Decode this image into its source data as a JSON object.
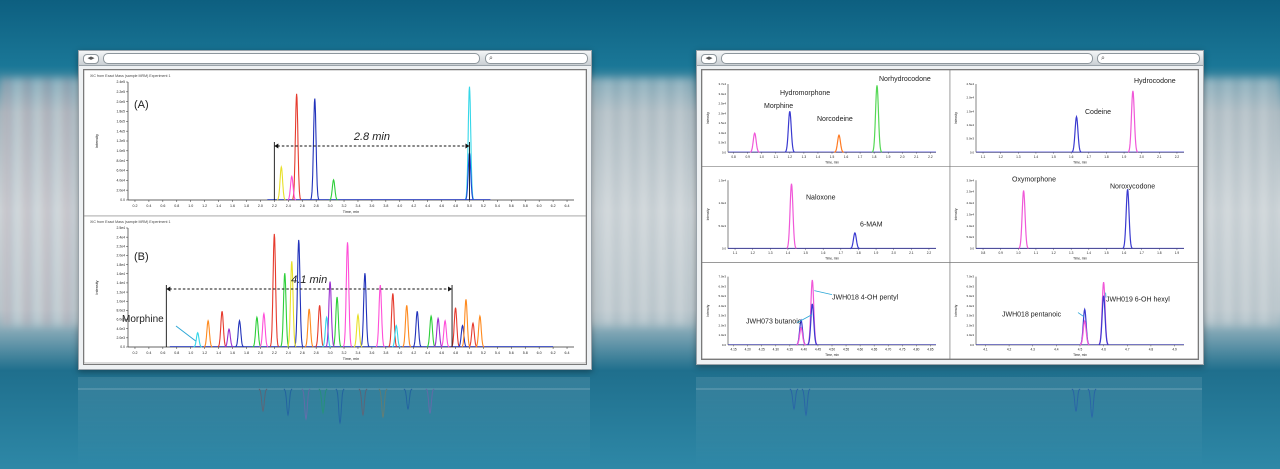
{
  "left_window": {
    "search_icon": "magnifier-icon",
    "panels": [
      {
        "header": "XIC from Exact Mass (sample MRM)  Experiment 1",
        "label": "(A)",
        "span_label": "2.8 min",
        "xlabel": "Time, min",
        "ylabel": "Intensity",
        "ticks_x": [
          "0.2",
          "0.4",
          "0.6",
          "0.8",
          "1.0",
          "1.2",
          "1.4",
          "1.6",
          "1.8",
          "2.0",
          "2.2",
          "2.4",
          "2.6",
          "2.8",
          "3.0",
          "3.2",
          "3.4",
          "3.6",
          "3.8",
          "4.0",
          "4.2",
          "4.4",
          "4.6",
          "4.8",
          "5.0",
          "5.2",
          "5.4",
          "5.6",
          "5.8",
          "6.0",
          "6.2",
          "6.4"
        ],
        "ticks_y": [
          "2.4e5",
          "2.2e5",
          "2.0e5",
          "1.8e5",
          "1.6e5",
          "1.4e5",
          "1.2e5",
          "1.0e5",
          "8.0e4",
          "6.0e4",
          "4.0e4",
          "2.0e4",
          "0.0"
        ]
      },
      {
        "header": "XIC from Exact Mass (sample MRM)  Experiment 1",
        "label": "(B)",
        "span_label": "4.1 min",
        "annotation": "Morphine",
        "xlabel": "Time, min",
        "ylabel": "Intensity",
        "ticks_x": [
          "0.2",
          "0.4",
          "0.6",
          "0.8",
          "1.0",
          "1.2",
          "1.4",
          "1.6",
          "1.8",
          "2.0",
          "2.2",
          "2.4",
          "2.6",
          "2.8",
          "3.0",
          "3.2",
          "3.4",
          "3.6",
          "3.8",
          "4.0",
          "4.2",
          "4.4",
          "4.6",
          "4.8",
          "5.0",
          "5.2",
          "5.4",
          "5.6",
          "5.8",
          "6.0",
          "6.2",
          "6.4"
        ],
        "ticks_y": [
          "2.5e4",
          "2.4e4",
          "2.2e4",
          "2.0e4",
          "1.8e4",
          "1.6e4",
          "1.4e4",
          "1.2e4",
          "1.0e4",
          "8.0e3",
          "6.0e3",
          "4.0e3",
          "2.0e3",
          "0.0"
        ]
      }
    ]
  },
  "right_window": {
    "search_icon": "magnifier-icon",
    "panels": [
      {
        "labels": [
          "Morphine",
          "Hydromorphone",
          "Norcodeine",
          "Norhydrocodone"
        ],
        "ticks_x": [
          "0.8",
          "0.9",
          "1.0",
          "1.1",
          "1.2",
          "1.3",
          "1.4",
          "1.5",
          "1.6",
          "1.7",
          "1.8",
          "1.9",
          "2.0",
          "2.1",
          "2.2"
        ],
        "ticks_y": [
          "3.7e4",
          "3.0e4",
          "2.5e4",
          "2.0e4",
          "1.5e4",
          "1.0e4",
          "5.0e3",
          "0.0"
        ],
        "xlabel": "Time, min",
        "ylabel": "Intensity"
      },
      {
        "labels": [
          "Codeine",
          "Hydrocodone"
        ],
        "ticks_x": [
          "1.1",
          "1.2",
          "1.3",
          "1.4",
          "1.5",
          "1.6",
          "1.7",
          "1.8",
          "1.9",
          "2.0",
          "2.1",
          "2.2"
        ],
        "ticks_y": [
          "2.5e4",
          "2.0e4",
          "1.5e4",
          "1.0e4",
          "5.0e3",
          "0.0"
        ],
        "xlabel": "Time, min",
        "ylabel": "Intensity"
      },
      {
        "labels": [
          "Naloxone",
          "6-MAM"
        ],
        "ticks_x": [
          "1.1",
          "1.2",
          "1.3",
          "1.4",
          "1.5",
          "1.6",
          "1.7",
          "1.8",
          "1.9",
          "2.0",
          "2.1",
          "2.2"
        ],
        "ticks_y": [
          "1.5e4",
          "1.0e4",
          "5.0e3",
          "0.0"
        ],
        "xlabel": "Time, min",
        "ylabel": "Intensity"
      },
      {
        "labels": [
          "Oxymorphone",
          "Noroxycodone"
        ],
        "ticks_x": [
          "0.8",
          "0.9",
          "1.0",
          "1.1",
          "1.2",
          "1.3",
          "1.4",
          "1.5",
          "1.6",
          "1.7",
          "1.8",
          "1.9"
        ],
        "ticks_y": [
          "3.0e4",
          "2.5e4",
          "2.0e4",
          "1.5e4",
          "1.0e4",
          "5.0e3",
          "0.0"
        ],
        "xlabel": "Time, min",
        "ylabel": "Intensity"
      },
      {
        "labels": [
          "JWH073 butanoic",
          "JWH018 4-OH pentyl"
        ],
        "ticks_x": [
          "4.15",
          "4.20",
          "4.25",
          "4.30",
          "4.35",
          "4.40",
          "4.45",
          "4.50",
          "4.55",
          "4.60",
          "4.65",
          "4.70",
          "4.75",
          "4.80",
          "4.85"
        ],
        "ticks_y": [
          "7.0e3",
          "6.0e3",
          "5.0e3",
          "4.0e3",
          "3.0e3",
          "2.0e3",
          "1.0e3",
          "0.0"
        ],
        "xlabel": "Time, min",
        "ylabel": "Intensity"
      },
      {
        "labels": [
          "JWH018 pentanoic",
          "JWH019 6-OH hexyl"
        ],
        "ticks_x": [
          "4.1",
          "4.2",
          "4.3",
          "4.4",
          "4.5",
          "4.6",
          "4.7",
          "4.8",
          "4.9"
        ],
        "ticks_y": [
          "7.0e3",
          "6.0e3",
          "5.0e3",
          "4.0e3",
          "3.0e3",
          "2.0e3",
          "1.0e3",
          "0.0"
        ],
        "xlabel": "Time, min",
        "ylabel": "Intensity"
      }
    ]
  },
  "chart_data": [
    {
      "type": "line",
      "panel": "A",
      "title": "(A)",
      "annotation": "2.8 min",
      "series": [
        {
          "name": "",
          "color": "#e63b2e",
          "peaks": [
            [
              2.52,
              0.9
            ]
          ]
        },
        {
          "name": "",
          "color": "#2233bb",
          "peaks": [
            [
              2.78,
              0.86
            ]
          ]
        },
        {
          "name": "",
          "color": "#2ecf3a",
          "peaks": [
            [
              3.05,
              0.17
            ]
          ]
        },
        {
          "name": "",
          "color": "#e8e02a",
          "peaks": [
            [
              2.3,
              0.28
            ]
          ]
        },
        {
          "name": "",
          "color": "#ff4fd8",
          "peaks": [
            [
              2.45,
              0.2
            ]
          ]
        },
        {
          "name": "",
          "color": "#35d7e8",
          "peaks": [
            [
              5.0,
              0.96
            ]
          ]
        },
        {
          "name": "",
          "color": "#1f45d6",
          "peaks": [
            [
              5.0,
              0.4
            ]
          ]
        }
      ]
    },
    {
      "type": "line",
      "panel": "B",
      "title": "(B)",
      "annotation": "4.1 min",
      "series": [
        {
          "name": "",
          "color": "#e63b2e",
          "peaks": [
            [
              1.45,
              0.3
            ],
            [
              2.2,
              0.95
            ],
            [
              2.85,
              0.35
            ],
            [
              3.9,
              0.45
            ],
            [
              4.8,
              0.33
            ],
            [
              5.05,
              0.2
            ]
          ]
        },
        {
          "name": "",
          "color": "#2233bb",
          "peaks": [
            [
              1.7,
              0.22
            ],
            [
              2.55,
              0.9
            ],
            [
              3.5,
              0.62
            ],
            [
              4.25,
              0.3
            ],
            [
              4.9,
              0.18
            ]
          ]
        },
        {
          "name": "",
          "color": "#2ecf3a",
          "peaks": [
            [
              1.95,
              0.25
            ],
            [
              2.35,
              0.62
            ],
            [
              3.1,
              0.42
            ],
            [
              4.45,
              0.26
            ]
          ]
        },
        {
          "name": "",
          "color": "#ff4fd8",
          "peaks": [
            [
              2.05,
              0.28
            ],
            [
              3.25,
              0.88
            ],
            [
              3.72,
              0.52
            ],
            [
              4.65,
              0.22
            ]
          ]
        },
        {
          "name": "",
          "color": "#ff8a1e",
          "peaks": [
            [
              1.25,
              0.22
            ],
            [
              2.7,
              0.32
            ],
            [
              4.1,
              0.35
            ],
            [
              4.95,
              0.4
            ],
            [
              5.15,
              0.26
            ]
          ]
        },
        {
          "name": "",
          "color": "#35d7e8",
          "peaks": [
            [
              1.1,
              0.12
            ],
            [
              2.95,
              0.25
            ],
            [
              3.95,
              0.18
            ]
          ]
        },
        {
          "name": "",
          "color": "#e8e02a",
          "peaks": [
            [
              2.45,
              0.72
            ],
            [
              3.4,
              0.27
            ]
          ]
        },
        {
          "name": "",
          "color": "#9a2fd0",
          "peaks": [
            [
              1.55,
              0.15
            ],
            [
              3.0,
              0.55
            ],
            [
              4.55,
              0.24
            ]
          ]
        }
      ]
    },
    {
      "type": "line",
      "panel": "1",
      "peaks": [
        {
          "label": "Morphine",
          "x": 0.95,
          "h": 0.28,
          "color": "#f058d8"
        },
        {
          "label": "Hydromorphone",
          "x": 1.2,
          "h": 0.6,
          "color": "#3a3ad0"
        },
        {
          "label": "Norcodeine",
          "x": 1.55,
          "h": 0.25,
          "color": "#ff7a22"
        },
        {
          "label": "Norhydrocodone",
          "x": 1.82,
          "h": 0.98,
          "color": "#55d855"
        }
      ]
    },
    {
      "type": "line",
      "panel": "2",
      "peaks": [
        {
          "label": "Codeine",
          "x": 1.63,
          "h": 0.52,
          "color": "#3a3ad0"
        },
        {
          "label": "Hydrocodone",
          "x": 1.95,
          "h": 0.9,
          "color": "#f058d8"
        }
      ]
    },
    {
      "type": "line",
      "panel": "3",
      "peaks": [
        {
          "label": "Naloxone",
          "x": 1.42,
          "h": 0.95,
          "color": "#f058d8"
        },
        {
          "label": "6-MAM",
          "x": 1.78,
          "h": 0.23,
          "color": "#3a3ad0"
        }
      ]
    },
    {
      "type": "line",
      "panel": "4",
      "peaks": [
        {
          "label": "Oxymorphone",
          "x": 1.03,
          "h": 0.85,
          "color": "#f058d8"
        },
        {
          "label": "Noroxycodone",
          "x": 1.62,
          "h": 0.87,
          "color": "#3a3ad0"
        }
      ]
    },
    {
      "type": "line",
      "panel": "5",
      "peaks": [
        {
          "label": "JWH073 butanoic",
          "x": 4.39,
          "h": 0.36,
          "color": "#3a3ad0"
        },
        {
          "label": "",
          "x": 4.39,
          "h": 0.25,
          "color": "#f058d8"
        },
        {
          "label": "JWH018 4-OH pentyl",
          "x": 4.43,
          "h": 0.95,
          "color": "#f058d8"
        },
        {
          "label": "",
          "x": 4.43,
          "h": 0.6,
          "color": "#3a3ad0"
        }
      ]
    },
    {
      "type": "line",
      "panel": "6",
      "peaks": [
        {
          "label": "JWH018 pentanoic",
          "x": 4.52,
          "h": 0.52,
          "color": "#3a3ad0"
        },
        {
          "label": "",
          "x": 4.52,
          "h": 0.35,
          "color": "#f058d8"
        },
        {
          "label": "JWH019 6-OH hexyl",
          "x": 4.6,
          "h": 0.92,
          "color": "#f058d8"
        },
        {
          "label": "",
          "x": 4.6,
          "h": 0.72,
          "color": "#3a3ad0"
        }
      ]
    }
  ]
}
